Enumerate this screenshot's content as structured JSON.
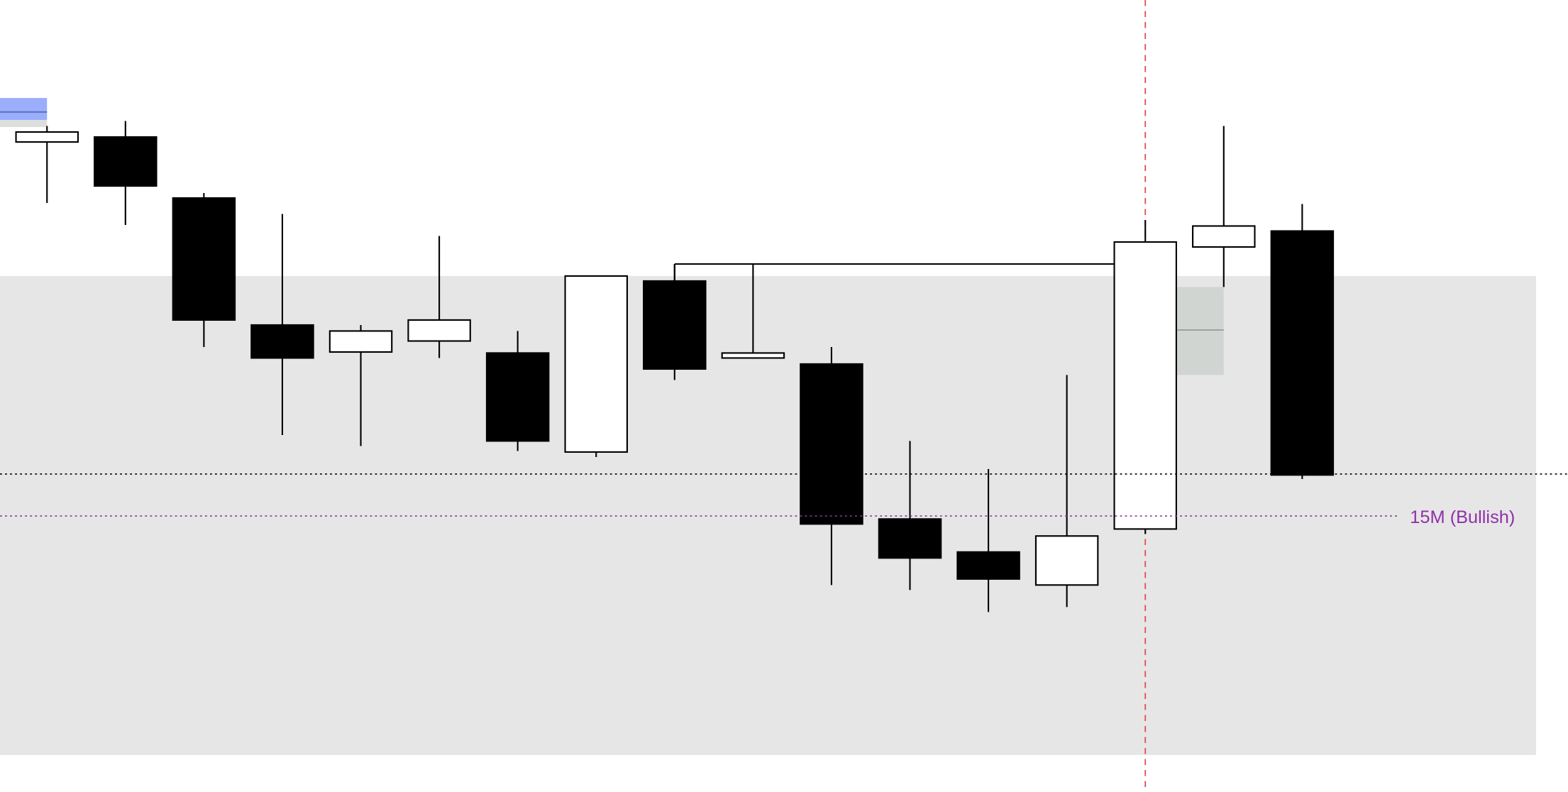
{
  "chart_data": {
    "type": "candlestick",
    "title": "",
    "xlabel": "",
    "ylabel": "",
    "ylim": [
      4,
      800
    ],
    "grid": false,
    "colors": {
      "bull": "#ffffff",
      "bear": "#000000",
      "zone": "#e6e6e6",
      "level": "#9030a8",
      "marker": "#e05050",
      "highlight": "#9aaefb"
    },
    "candles": [
      {
        "open": 658,
        "close": 668,
        "high": 674,
        "low": 597
      },
      {
        "open": 663,
        "close": 614,
        "high": 679,
        "low": 575
      },
      {
        "open": 602,
        "close": 480,
        "high": 607,
        "low": 453
      },
      {
        "open": 475,
        "close": 442,
        "high": 586,
        "low": 365
      },
      {
        "open": 448,
        "close": 469,
        "high": 475,
        "low": 354
      },
      {
        "open": 459,
        "close": 480,
        "high": 564,
        "low": 442
      },
      {
        "open": 447,
        "close": 359,
        "high": 469,
        "low": 349
      },
      {
        "open": 348,
        "close": 524,
        "high": 524,
        "low": 343
      },
      {
        "open": 519,
        "close": 431,
        "high": 536,
        "low": 420
      },
      {
        "open": 442,
        "close": 447,
        "high": 536,
        "low": 442
      },
      {
        "open": 436,
        "close": 276,
        "high": 453,
        "low": 215
      },
      {
        "open": 281,
        "close": 242,
        "high": 359,
        "low": 210
      },
      {
        "open": 248,
        "close": 221,
        "high": 331,
        "low": 188
      },
      {
        "open": 215,
        "close": 264,
        "high": 425,
        "low": 193
      },
      {
        "open": 271,
        "close": 558,
        "high": 580,
        "low": 266
      },
      {
        "open": 553,
        "close": 574,
        "high": 674,
        "low": 513
      },
      {
        "open": 569,
        "close": 325,
        "high": 596,
        "low": 321
      }
    ],
    "zone": {
      "from": 45,
      "to": 524
    },
    "zone_inner": {
      "from": 425,
      "to": 513,
      "mid": 470
    },
    "highlight_box": {
      "from": 680,
      "to": 702,
      "mid": 688
    },
    "swing_high_line": {
      "level": 536,
      "from_candle": 9,
      "to_candle": 15
    },
    "dotted_level": 326,
    "labeled_level": {
      "value": 284,
      "label": "15M (Bullish)"
    },
    "vertical_marker_candle": 14
  }
}
